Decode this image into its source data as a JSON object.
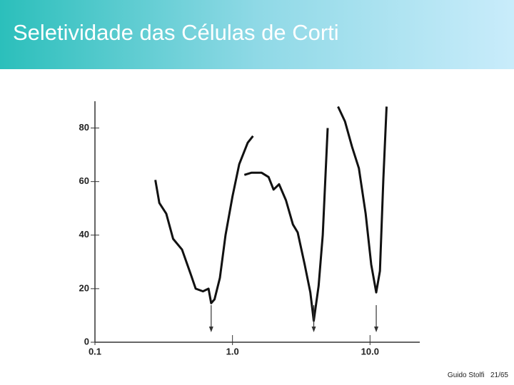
{
  "slide": {
    "title": "Seletividade das Células de Corti",
    "footer": {
      "author": "Guido Stolfi",
      "page": "21/65"
    }
  },
  "chart_data": {
    "type": "line",
    "log_x": true,
    "xlim": [
      0.1,
      23
    ],
    "xticks": [
      0.1,
      {
        "value": 1,
        "label": "1.0"
      },
      {
        "value": 10,
        "label": "10.0"
      }
    ],
    "ylim": [
      0,
      90
    ],
    "yticks": [
      0,
      20,
      40,
      60,
      80
    ],
    "series": [
      {
        "color": "#111111",
        "x": [
          0.275,
          0.294,
          0.33,
          0.37,
          0.43,
          0.5,
          0.54,
          0.61,
          0.67,
          0.7,
          0.74,
          0.81,
          0.89,
          1.0,
          1.12,
          1.29,
          1.41
        ],
        "values": [
          60.6,
          52,
          48,
          38.6,
          34.6,
          25,
          20,
          19,
          20,
          14.6,
          16,
          24,
          40,
          54.5,
          66.5,
          74.5,
          77
        ]
      },
      {
        "color": "#111111",
        "x": [
          1.22,
          1.37,
          1.63,
          1.83,
          1.99,
          2.18,
          2.45,
          2.75,
          2.98,
          3.35,
          3.68,
          3.9,
          4.23,
          4.53,
          4.92
        ],
        "values": [
          62.5,
          63.3,
          63.3,
          61.7,
          57,
          59,
          53,
          44,
          41,
          29,
          18.6,
          8,
          21,
          40,
          80
        ]
      },
      {
        "color": "#111111",
        "x": [
          5.85,
          6.57,
          7.4,
          8.3,
          9.3,
          10.2,
          11.1,
          11.8,
          12.5,
          13.2
        ],
        "values": [
          88,
          82.5,
          73,
          65,
          48,
          29,
          18.6,
          26.6,
          61,
          88
        ]
      }
    ],
    "markers": [
      0.7,
      3.9,
      11.1
    ]
  }
}
